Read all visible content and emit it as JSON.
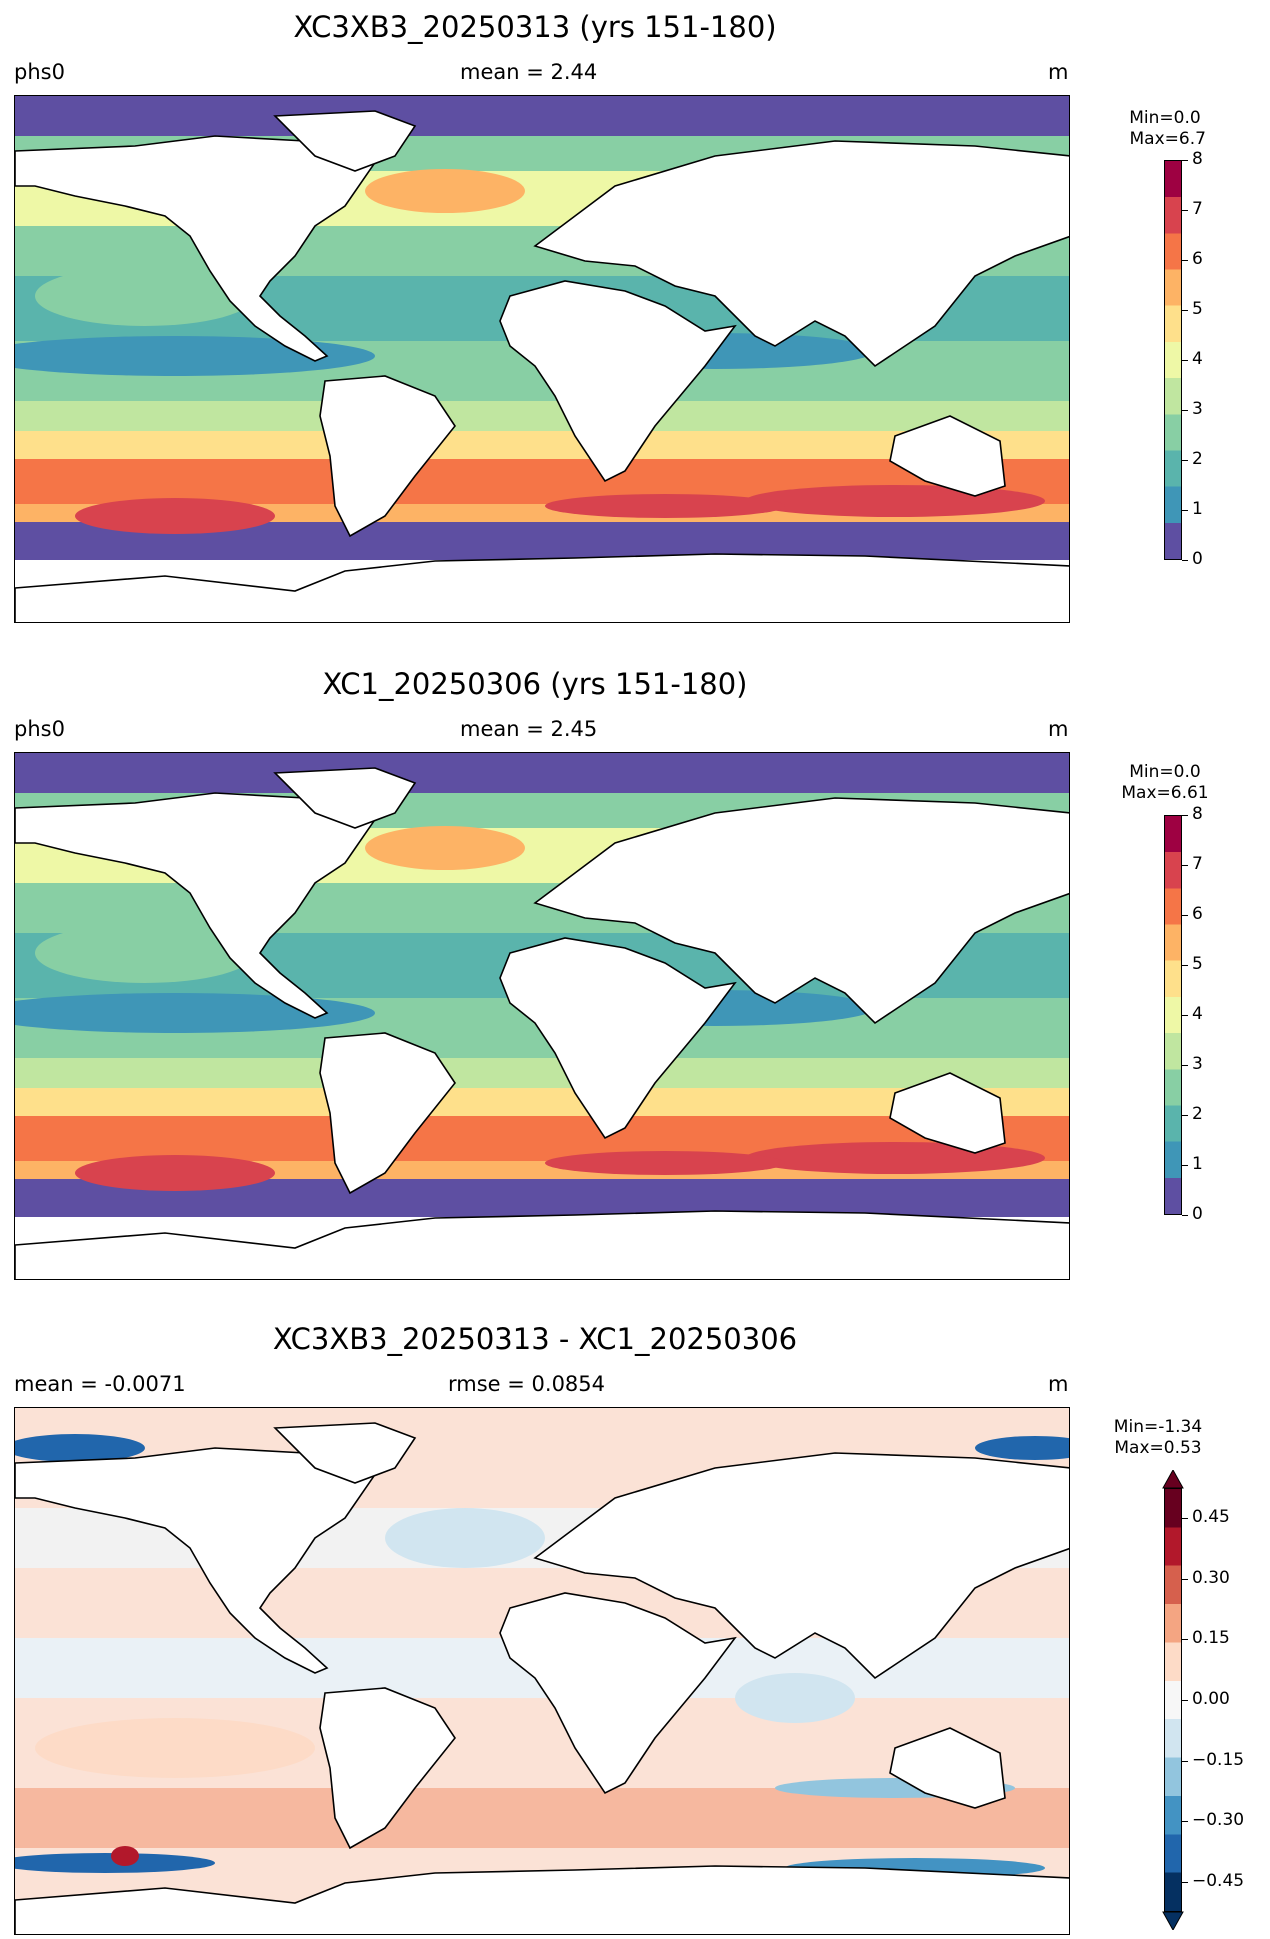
{
  "panels": [
    {
      "title": "XC3XB3_20250313 (yrs 151-180)",
      "left_label": "phs0",
      "center_label": "mean = 2.44",
      "right_label": "m",
      "colorbar_minmax": "Min=0.0\n Max=6.7",
      "colormap": "Spectral_r",
      "colorbar_ticks": [
        "8",
        "7",
        "6",
        "5",
        "4",
        "3",
        "2",
        "1",
        "0"
      ]
    },
    {
      "title": "XC1_20250306 (yrs 151-180)",
      "left_label": "phs0",
      "center_label": "mean = 2.45",
      "right_label": "m",
      "colorbar_minmax": "Min=0.0\nMax=6.61",
      "colormap": "Spectral_r",
      "colorbar_ticks": [
        "8",
        "7",
        "6",
        "5",
        "4",
        "3",
        "2",
        "1",
        "0"
      ]
    },
    {
      "title": "XC3XB3_20250313 - XC1_20250306",
      "left_label": "mean = -0.0071",
      "center_label": "rmse = 0.0854",
      "right_label": "m",
      "colorbar_minmax": "Min=-1.34\nMax=0.53",
      "colormap": "RdBu_r",
      "colorbar_ticks": [
        "0.45",
        "0.30",
        "0.15",
        "0.00",
        "−0.15",
        "−0.30",
        "−0.45"
      ]
    }
  ],
  "colors": {
    "spectral_r": [
      "#5e4fa2",
      "#3f96b7",
      "#5ab4ac",
      "#88cfa4",
      "#c0e6a0",
      "#eef8a6",
      "#fee08b",
      "#fdb365",
      "#f57547",
      "#d8434e",
      "#9e0142"
    ],
    "rdbu_r": [
      "#053061",
      "#2166ac",
      "#4393c3",
      "#92c5de",
      "#d1e5f0",
      "#f7f7f7",
      "#fddbc7",
      "#f4a582",
      "#d6604d",
      "#b2182b",
      "#67001f"
    ],
    "land": "#ffffff",
    "coastline": "#000000"
  }
}
